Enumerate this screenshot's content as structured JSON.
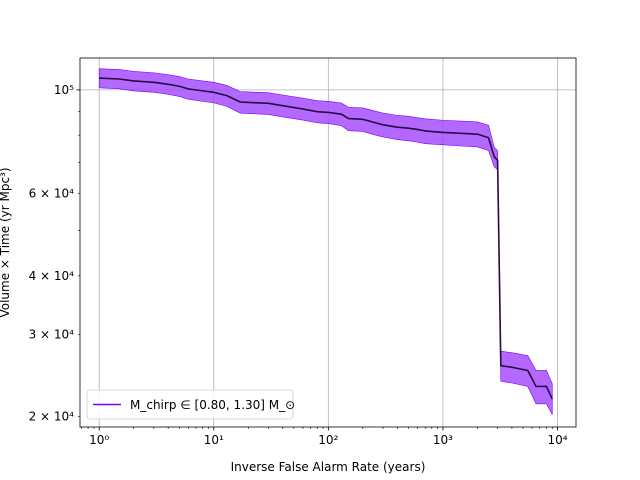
{
  "chart_data": {
    "type": "line",
    "title": "",
    "xlabel": "Inverse False Alarm Rate (years)",
    "ylabel": "Volume × Time (yr Mpc³)",
    "xscale": "log",
    "yscale": "log",
    "xlim": [
      0.68,
      14500
    ],
    "ylim": [
      19000,
      117000
    ],
    "grid": true,
    "x_ticks": [
      {
        "value": 1,
        "label": "10⁰"
      },
      {
        "value": 10,
        "label": "10¹"
      },
      {
        "value": 100,
        "label": "10²"
      },
      {
        "value": 1000,
        "label": "10³"
      },
      {
        "value": 10000,
        "label": "10⁴"
      }
    ],
    "y_ticks": [
      {
        "value": 20000,
        "label": "2 × 10⁴"
      },
      {
        "value": 30000,
        "label": "3 × 10⁴"
      },
      {
        "value": 40000,
        "label": "4 × 10⁴"
      },
      {
        "value": 60000,
        "label": "6 × 10⁴"
      },
      {
        "value": 100000,
        "label": "10⁵"
      }
    ],
    "legend": {
      "placement": "lower-left",
      "entries": [
        "M_chirp ∈ [0.80, 1.30] M_⊙"
      ]
    },
    "series": [
      {
        "name": "M_chirp ∈ [0.80, 1.30] M_⊙",
        "color": "#7a00ff",
        "band_color": "#a64dff",
        "line_color": "#2a0a40",
        "x": [
          1.0,
          1.5,
          2.0,
          3.0,
          4.0,
          5.0,
          6.0,
          8.0,
          10.0,
          13.0,
          17.0,
          20.0,
          30.0,
          40.0,
          60.0,
          80.0,
          100.0,
          130.0,
          150.0,
          200.0,
          250.0,
          300.0,
          400.0,
          500.0,
          600.0,
          700.0,
          1000.0,
          1500.0,
          2000.0,
          2500.0,
          2800.0,
          3000.0,
          3200.0,
          4000.0,
          5500.0,
          6500.0,
          8000.0,
          9000.0
        ],
        "y": [
          106000,
          105500,
          104500,
          103800,
          102800,
          101800,
          100500,
          99500,
          98800,
          97200,
          94200,
          94000,
          93600,
          92500,
          91000,
          89800,
          89500,
          88700,
          86800,
          86500,
          85200,
          84200,
          83200,
          82800,
          82300,
          81700,
          81100,
          80700,
          80400,
          79000,
          72000,
          70600,
          25700,
          25500,
          25100,
          23200,
          23200,
          21800
        ],
        "lower": [
          101000,
          100500,
          99500,
          98800,
          97800,
          96800,
          95500,
          94500,
          93800,
          92200,
          89200,
          89000,
          88600,
          87500,
          86200,
          85000,
          84700,
          83800,
          81800,
          81500,
          80200,
          79300,
          78300,
          77800,
          77300,
          76700,
          76300,
          75800,
          75500,
          74200,
          68500,
          67500,
          23800,
          23600,
          23200,
          21300,
          21300,
          20200
        ],
        "upper": [
          111000,
          110500,
          109500,
          108800,
          107800,
          106800,
          105500,
          104500,
          103800,
          102200,
          99200,
          99000,
          98600,
          97500,
          96000,
          94800,
          94500,
          93700,
          91800,
          91500,
          90200,
          89200,
          88200,
          87800,
          87200,
          86700,
          86100,
          85700,
          85400,
          84000,
          75500,
          74000,
          27600,
          27400,
          27000,
          25100,
          25100,
          23500
        ]
      }
    ]
  }
}
